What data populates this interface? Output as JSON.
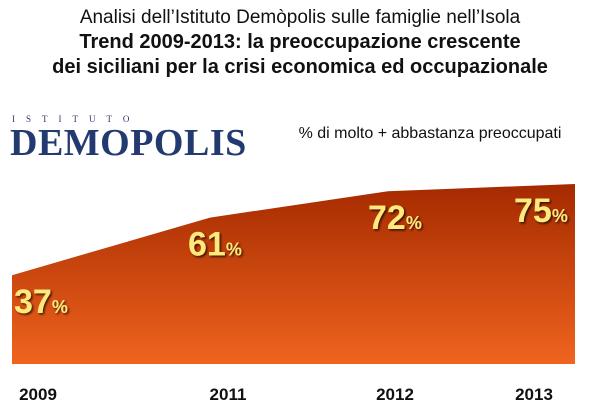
{
  "header": {
    "supertitle": "Analisi dell’Istituto Demòpolis sulle famiglie nell’Isola",
    "title_line1": "Trend 2009-2013: la preoccupazione crescente",
    "title_line2": "dei siciliani per la crisi economica ed occupazionale"
  },
  "logo": {
    "top_text": "ISTITUTO",
    "main_text": "DEMOPOLIS"
  },
  "chart_data": {
    "type": "area",
    "subtitle": "% di molto + abbastanza preoccupati",
    "categories": [
      "2009",
      "2011",
      "2012",
      "2013"
    ],
    "values": [
      37,
      61,
      72,
      75
    ],
    "value_suffix": "%",
    "ylim": [
      0,
      100
    ],
    "grid": false,
    "colors": {
      "fill_top": "#a52a00",
      "fill_bottom": "#f0641e",
      "label": "#ffe97a"
    }
  }
}
